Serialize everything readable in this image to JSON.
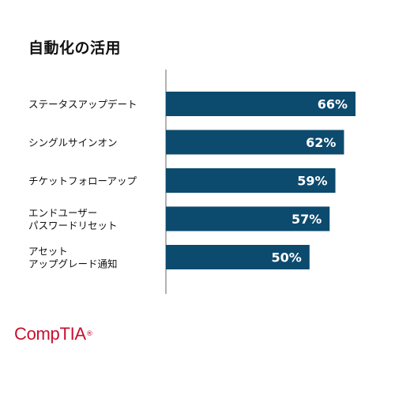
{
  "chart_data": {
    "type": "bar",
    "orientation": "horizontal",
    "title": "自動化の活用",
    "categories": [
      [
        "ステータスアップデート"
      ],
      [
        "シングルサインオン"
      ],
      [
        "チケットフォローアップ"
      ],
      [
        "エンドユーザー",
        "パスワードリセット"
      ],
      [
        "アセット",
        "アップグレード通知"
      ]
    ],
    "values": [
      66,
      62,
      59,
      57,
      50
    ],
    "value_labels": [
      "66%",
      "62%",
      "59%",
      "57%",
      "50%"
    ],
    "bar_color": "#0c4a6e",
    "value_label_color": "#ffffff",
    "grid": false
  },
  "logo": {
    "text": "CompTIA",
    "mark": "®",
    "color": "#c8102e"
  }
}
